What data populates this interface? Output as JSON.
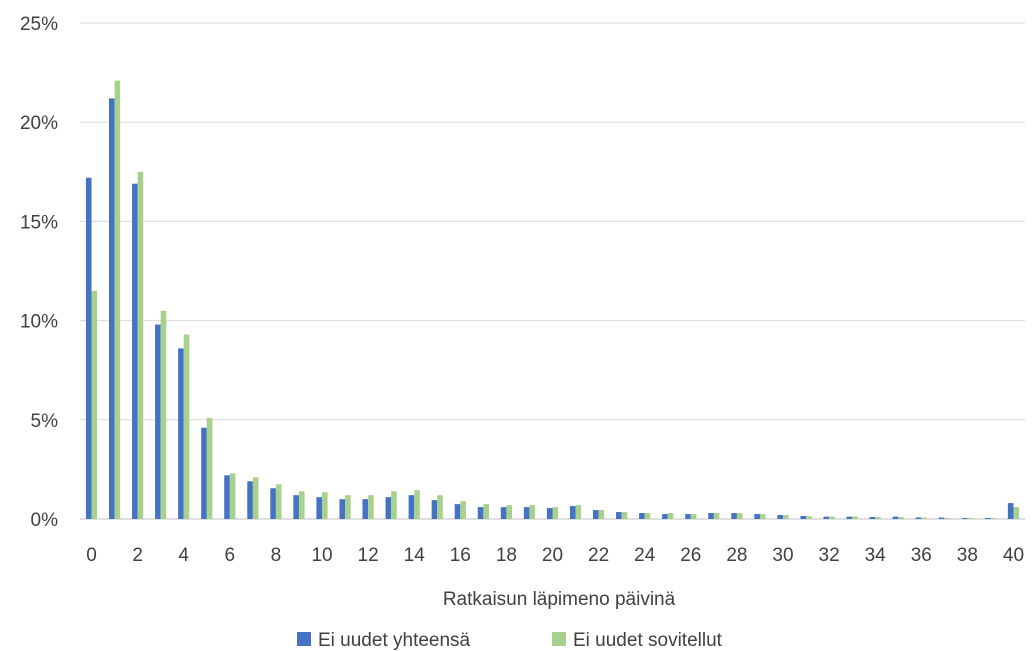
{
  "chart_data": {
    "type": "bar",
    "xlabel": "Ratkaisun läpimeno päivinä",
    "ylabel": "",
    "ylim": [
      0,
      25
    ],
    "y_ticks": [
      "0%",
      "5%",
      "10%",
      "15%",
      "20%",
      "25%"
    ],
    "y_tick_values": [
      0,
      5,
      10,
      15,
      20,
      25
    ],
    "grid": "horizontal",
    "legend_position": "bottom",
    "categories": [
      0,
      1,
      2,
      3,
      4,
      5,
      6,
      7,
      8,
      9,
      10,
      11,
      12,
      13,
      14,
      15,
      16,
      17,
      18,
      19,
      20,
      21,
      22,
      23,
      24,
      25,
      26,
      27,
      28,
      29,
      30,
      31,
      32,
      33,
      34,
      35,
      36,
      37,
      38,
      39,
      40
    ],
    "x_tick_labels": [
      "0",
      "2",
      "4",
      "6",
      "8",
      "10",
      "12",
      "14",
      "16",
      "18",
      "20",
      "22",
      "24",
      "26",
      "28",
      "30",
      "32",
      "34",
      "36",
      "38",
      "40"
    ],
    "series": [
      {
        "name": "Ei uudet yhteensä",
        "color": "#4472c4",
        "values": [
          17.2,
          21.2,
          16.9,
          9.8,
          8.6,
          4.6,
          2.2,
          1.9,
          1.55,
          1.2,
          1.1,
          1.0,
          1.0,
          1.1,
          1.2,
          0.95,
          0.75,
          0.6,
          0.6,
          0.6,
          0.55,
          0.65,
          0.45,
          0.35,
          0.3,
          0.25,
          0.25,
          0.3,
          0.3,
          0.25,
          0.2,
          0.15,
          0.12,
          0.12,
          0.1,
          0.12,
          0.08,
          0.07,
          0.05,
          0.05,
          0.8
        ]
      },
      {
        "name": "Ei uudet sovitellut",
        "color": "#a9d18e",
        "values": [
          11.5,
          22.1,
          17.5,
          10.5,
          9.3,
          5.1,
          2.3,
          2.1,
          1.75,
          1.4,
          1.35,
          1.2,
          1.2,
          1.4,
          1.45,
          1.2,
          0.9,
          0.75,
          0.7,
          0.7,
          0.6,
          0.7,
          0.45,
          0.35,
          0.3,
          0.3,
          0.25,
          0.3,
          0.3,
          0.25,
          0.2,
          0.15,
          0.12,
          0.12,
          0.1,
          0.1,
          0.07,
          0.05,
          0.05,
          0.05,
          0.6
        ]
      }
    ]
  }
}
